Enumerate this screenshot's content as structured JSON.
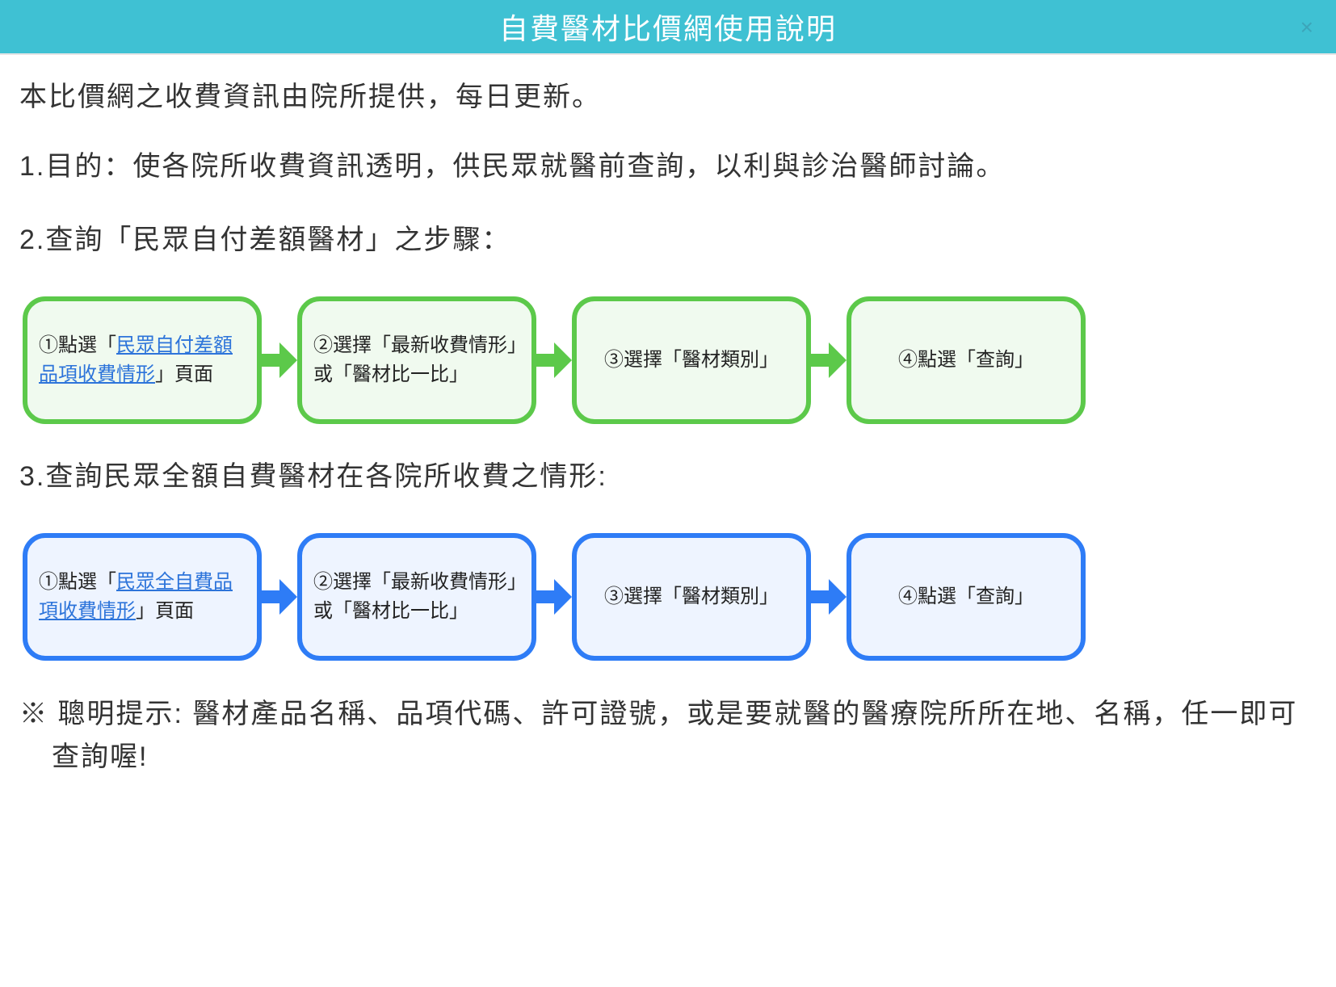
{
  "header": {
    "title": "自費醫材比價網使用說明",
    "bg_color": "#3fc1d3",
    "text_color": "#ffffff",
    "close_color": "#3a8aa0"
  },
  "intro_text": "本比價網之收費資訊由院所提供，每日更新。",
  "section1": {
    "number": "1.",
    "heading": "目的：使各院所收費資訊透明，供民眾就醫前查詢，以利與診治醫師討論。"
  },
  "section2": {
    "number": "2.",
    "heading": "查詢「民眾自付差額醫材」之步驟：",
    "flow": {
      "type": "flowchart",
      "border_color": "#5cc94a",
      "fill_color": "#f0faef",
      "link_color": "#2d74da",
      "arrow_color": "#5cc94a",
      "steps": [
        {
          "prefix": "①點選「",
          "link": "民眾自付差額品項收費情形",
          "suffix": "」頁面",
          "has_link": true
        },
        {
          "text": "②選擇「最新收費情形」或「醫材比一比」",
          "has_link": false
        },
        {
          "text": "③選擇「醫材類別」",
          "has_link": false
        },
        {
          "text": "④點選「查詢」",
          "has_link": false
        }
      ]
    }
  },
  "section3": {
    "number": "3.",
    "heading": "查詢民眾全額自費醫材在各院所收費之情形:",
    "flow": {
      "type": "flowchart",
      "border_color": "#2e7cf6",
      "fill_color": "#eef4ff",
      "link_color": "#2d74da",
      "arrow_color": "#2e7cf6",
      "steps": [
        {
          "prefix": "①點選「",
          "link": "民眾全自費品項收費情形",
          "suffix": "」頁面",
          "has_link": true
        },
        {
          "text": "②選擇「最新收費情形」或「醫材比一比」",
          "has_link": false
        },
        {
          "text": "③選擇「醫材類別」",
          "has_link": false
        },
        {
          "text": "④點選「查詢」",
          "has_link": false
        }
      ]
    }
  },
  "tip_text": "※ 聰明提示: 醫材產品名稱、品項代碼、許可證號，或是要就醫的醫療院所所在地、名稱，任一即可查詢喔!"
}
